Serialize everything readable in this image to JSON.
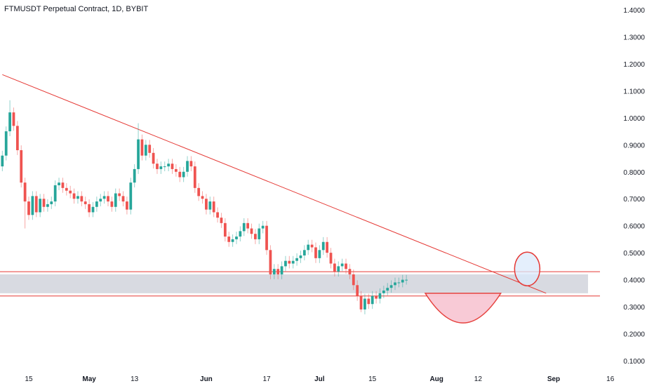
{
  "header": {
    "title": "FTMUSDT Perpetual Contract, 1D, BYBIT"
  },
  "colors": {
    "up": "#26a69a",
    "down": "#ef5350",
    "drawing": "#e53935",
    "zone_fill": "#d1d4dc",
    "circle_fill": "#dbe9fb",
    "cup_fill": "#f8c8d4",
    "axis_text": "#131722"
  },
  "chart_data": {
    "type": "candlestick",
    "title": "FTMUSDT Perpetual Contract, 1D, BYBIT",
    "xlabel": "",
    "ylabel": "",
    "ylim": [
      0.08,
      1.42
    ],
    "grid": false,
    "y_ticks": [
      "1.4000",
      "1.3000",
      "1.2000",
      "1.1000",
      "1.0000",
      "0.9000",
      "0.8000",
      "0.7000",
      "0.6000",
      "0.5000",
      "0.4000",
      "0.3000",
      "0.2000",
      "0.1000"
    ],
    "x_ticks": [
      {
        "label": "15",
        "bold": false,
        "date": "2024-04-15"
      },
      {
        "label": "May",
        "bold": true,
        "date": "2024-05-01"
      },
      {
        "label": "13",
        "bold": false,
        "date": "2024-05-13"
      },
      {
        "label": "Jun",
        "bold": true,
        "date": "2024-06-01"
      },
      {
        "label": "17",
        "bold": false,
        "date": "2024-06-17"
      },
      {
        "label": "Jul",
        "bold": true,
        "date": "2024-07-01"
      },
      {
        "label": "15",
        "bold": false,
        "date": "2024-07-15"
      },
      {
        "label": "Aug",
        "bold": true,
        "date": "2024-08-01"
      },
      {
        "label": "12",
        "bold": false,
        "date": "2024-08-12"
      },
      {
        "label": "Sep",
        "bold": true,
        "date": "2024-09-01"
      },
      {
        "label": "16",
        "bold": false,
        "date": "2024-09-16"
      }
    ],
    "start_date": "2024-04-08",
    "closes": [
      0.86,
      0.95,
      1.02,
      0.97,
      0.88,
      0.76,
      0.69,
      0.64,
      0.71,
      0.65,
      0.7,
      0.67,
      0.68,
      0.69,
      0.75,
      0.76,
      0.74,
      0.73,
      0.72,
      0.7,
      0.71,
      0.69,
      0.68,
      0.65,
      0.67,
      0.69,
      0.7,
      0.71,
      0.69,
      0.67,
      0.72,
      0.71,
      0.69,
      0.66,
      0.76,
      0.81,
      0.92,
      0.86,
      0.9,
      0.87,
      0.83,
      0.81,
      0.82,
      0.82,
      0.83,
      0.81,
      0.8,
      0.78,
      0.8,
      0.84,
      0.82,
      0.74,
      0.71,
      0.7,
      0.66,
      0.69,
      0.65,
      0.63,
      0.61,
      0.56,
      0.54,
      0.55,
      0.56,
      0.58,
      0.61,
      0.59,
      0.57,
      0.55,
      0.59,
      0.6,
      0.51,
      0.42,
      0.44,
      0.42,
      0.45,
      0.47,
      0.46,
      0.47,
      0.48,
      0.49,
      0.51,
      0.53,
      0.52,
      0.48,
      0.51,
      0.54,
      0.5,
      0.46,
      0.43,
      0.45,
      0.46,
      0.44,
      0.42,
      0.38,
      0.34,
      0.29,
      0.33,
      0.31,
      0.34,
      0.33,
      0.35,
      0.36,
      0.37,
      0.38,
      0.39,
      0.39,
      0.4,
      0.4
    ]
  },
  "annotations": {
    "trendline": {
      "from": {
        "date": "2024-04-08",
        "price": 1.16
      },
      "to": {
        "date": "2024-08-30",
        "price": 0.35
      }
    },
    "zone": {
      "top": 0.43,
      "bottom": 0.34,
      "fill_top": 0.42,
      "fill_bottom": 0.35
    },
    "breakout_circle": {
      "date": "2024-08-25",
      "price": 0.44
    },
    "cup": {
      "from": "2024-07-29",
      "to": "2024-08-18",
      "rim_price": 0.35,
      "low_price": 0.24
    }
  }
}
